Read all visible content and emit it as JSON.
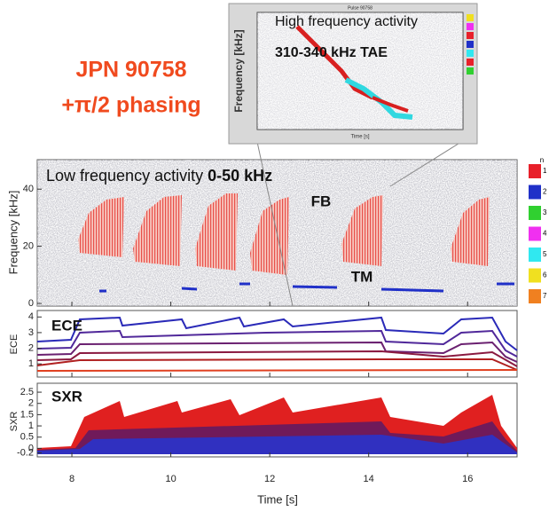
{
  "title": "JPN 90758",
  "subtitle": "+π/2 phasing",
  "inset": {
    "small_title": "Pulse 90758",
    "title": "High frequency activity",
    "annotation": "310-340 kHz TAE",
    "ylabel": "Frequency [kHz]",
    "xlabel": "Time [s]"
  },
  "panels": {
    "spectrogram": {
      "label": "Low frequency activity ",
      "label_bold": "0-50 kHz",
      "ylabel": "Frequency [kHz]",
      "ylim": [
        0,
        50
      ],
      "yticks": [
        0,
        20,
        40
      ],
      "annotations": [
        "FB",
        "TM"
      ]
    },
    "ece": {
      "label": "ECE",
      "ylabel": "ECE",
      "ylim": [
        0.5,
        4.3
      ],
      "yticks": [
        1,
        2,
        3,
        4
      ]
    },
    "sxr": {
      "label": "SXR",
      "ylabel": "SXR",
      "ylim": [
        -0.3,
        2.7
      ],
      "yticks": [
        -0.2,
        0,
        0.5,
        1,
        1.5,
        2,
        2.5
      ]
    }
  },
  "xaxis": {
    "label": "Time [s]",
    "xlim": [
      7.3,
      17.0
    ],
    "xticks": [
      8,
      10,
      12,
      14,
      16
    ]
  },
  "legend": {
    "title": "n",
    "items": [
      {
        "label": "1",
        "color": "#e8202a"
      },
      {
        "label": "2",
        "color": "#2030c8"
      },
      {
        "label": "3",
        "color": "#30d030"
      },
      {
        "label": "4",
        "color": "#f030f0"
      },
      {
        "label": "5",
        "color": "#30e8f0"
      },
      {
        "label": "6",
        "color": "#f0e020"
      },
      {
        "label": "7",
        "color": "#f08020"
      }
    ]
  }
}
